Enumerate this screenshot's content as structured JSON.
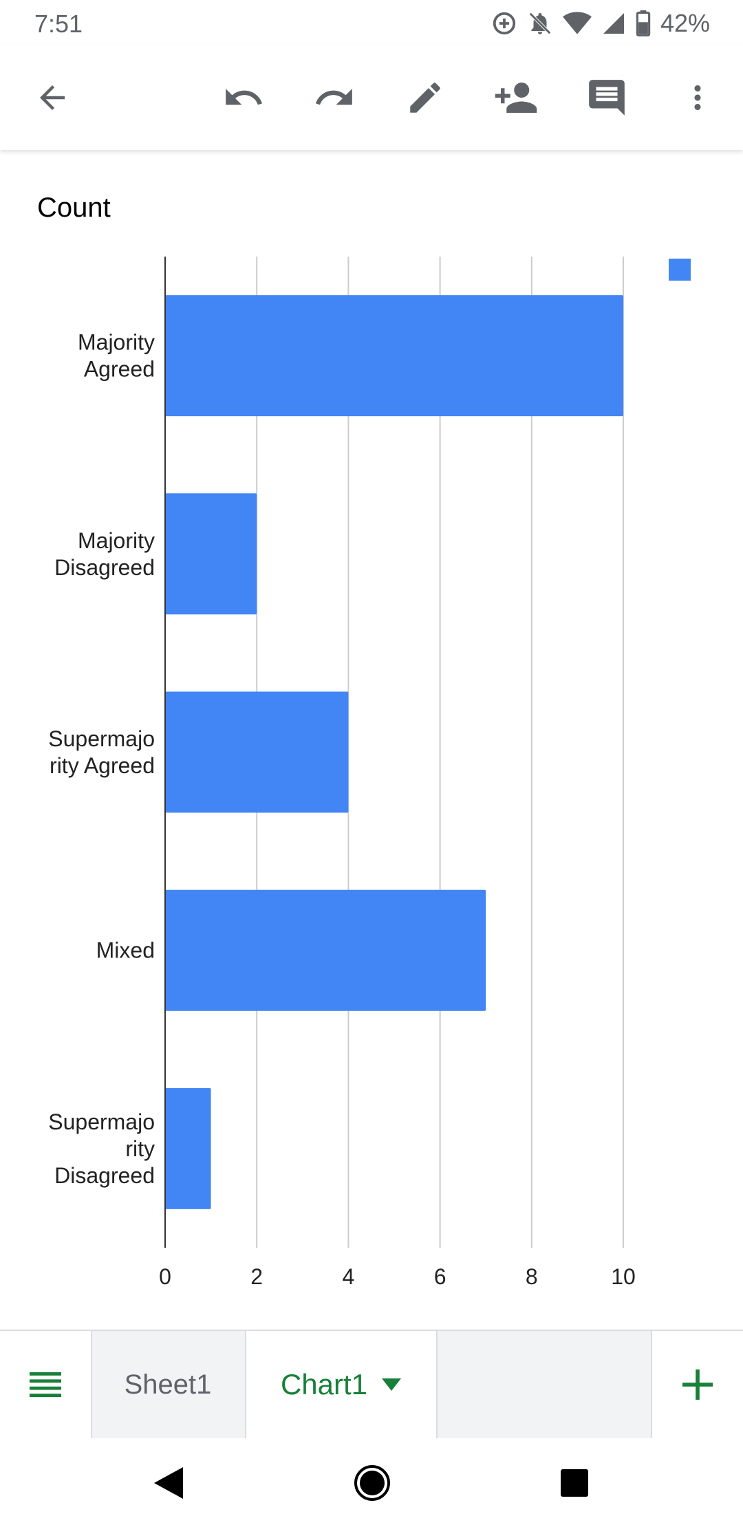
{
  "status_bar": {
    "time": "7:51",
    "battery_percent": "42%",
    "icons": [
      "data-saver-icon",
      "notifications-off-icon",
      "wifi-icon",
      "cellular-signal-icon",
      "battery-icon"
    ]
  },
  "toolbar": {
    "icons": [
      "back-arrow-icon",
      "undo-icon",
      "redo-icon",
      "edit-pencil-icon",
      "add-person-icon",
      "comment-icon",
      "more-vert-icon"
    ],
    "icon_color": "#5f6368"
  },
  "chart_data": {
    "type": "bar",
    "orientation": "horizontal",
    "title": "Count",
    "categories": [
      "Majority Agreed",
      "Majority Disagreed",
      "Supermajority Agreed",
      "Mixed",
      "Supermajority Disagreed"
    ],
    "category_labels": [
      [
        "Majority",
        "Agreed"
      ],
      [
        "Majority",
        "Disagreed"
      ],
      [
        "Supermajo",
        "rity Agreed"
      ],
      [
        "Mixed"
      ],
      [
        "Supermajo",
        "rity",
        "Disagreed"
      ]
    ],
    "series": [
      {
        "values": [
          10,
          2,
          4,
          7,
          1
        ],
        "color": "#4285f4"
      }
    ],
    "xlim": [
      0,
      10
    ],
    "xticks": [
      "0",
      "2",
      "4",
      "6",
      "8",
      "10"
    ],
    "grid": true,
    "legend": "top-right"
  },
  "sheet_tabs": {
    "sheet1_label": "Sheet1",
    "chart1_label": "Chart1",
    "active_color": "#188038",
    "icons": [
      "sheets-list-icon",
      "dropdown-arrow-icon",
      "add-sheet-icon"
    ]
  },
  "nav_bar": {
    "icons": [
      "back-triangle-icon",
      "home-circle-icon",
      "recents-square-icon"
    ]
  }
}
